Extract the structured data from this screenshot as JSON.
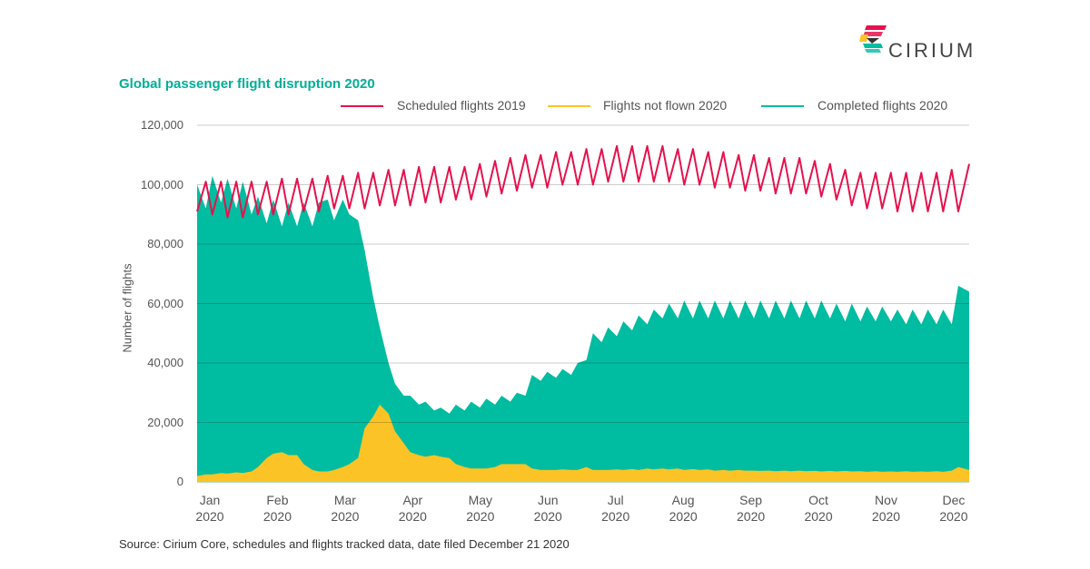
{
  "brand": {
    "logo_text": "CIRIUM"
  },
  "source": "Source: Cirium Core, schedules and flights tracked data, date filed December 21 2020",
  "chart_data": {
    "type": "area",
    "title": "Global passenger flight disruption 2020",
    "ylabel": "Number of flights",
    "xlabel": "",
    "ylim": [
      0,
      120000
    ],
    "yticks": [
      0,
      20000,
      40000,
      60000,
      80000,
      100000,
      120000
    ],
    "ytick_labels": [
      "0",
      "20,000",
      "40,000",
      "60,000",
      "80,000",
      "100,000",
      "120,000"
    ],
    "xtick_labels": [
      [
        "Jan",
        "2020"
      ],
      [
        "Feb",
        "2020"
      ],
      [
        "Mar",
        "2020"
      ],
      [
        "Apr",
        "2020"
      ],
      [
        "May",
        "2020"
      ],
      [
        "Jun",
        "2020"
      ],
      [
        "Jul",
        "2020"
      ],
      [
        "Aug",
        "2020"
      ],
      [
        "Sep",
        "2020"
      ],
      [
        "Oct",
        "2020"
      ],
      [
        "Nov",
        "2020"
      ],
      [
        "Dec",
        "2020"
      ]
    ],
    "grid": true,
    "legend_placement": "top-right",
    "x": [
      "2020-01-01",
      "2020-01-05",
      "2020-01-08",
      "2020-01-12",
      "2020-01-15",
      "2020-01-19",
      "2020-01-22",
      "2020-01-26",
      "2020-01-29",
      "2020-02-02",
      "2020-02-05",
      "2020-02-09",
      "2020-02-12",
      "2020-02-16",
      "2020-02-19",
      "2020-02-23",
      "2020-02-26",
      "2020-03-01",
      "2020-03-04",
      "2020-03-08",
      "2020-03-11",
      "2020-03-15",
      "2020-03-18",
      "2020-03-22",
      "2020-03-25",
      "2020-03-29",
      "2020-04-01",
      "2020-04-05",
      "2020-04-08",
      "2020-04-12",
      "2020-04-15",
      "2020-04-19",
      "2020-04-22",
      "2020-04-26",
      "2020-04-29",
      "2020-05-03",
      "2020-05-06",
      "2020-05-10",
      "2020-05-13",
      "2020-05-17",
      "2020-05-20",
      "2020-05-24",
      "2020-05-27",
      "2020-05-31",
      "2020-06-03",
      "2020-06-07",
      "2020-06-10",
      "2020-06-14",
      "2020-06-17",
      "2020-06-21",
      "2020-06-24",
      "2020-06-28",
      "2020-07-01",
      "2020-07-05",
      "2020-07-08",
      "2020-07-12",
      "2020-07-15",
      "2020-07-19",
      "2020-07-22",
      "2020-07-26",
      "2020-07-29",
      "2020-08-02",
      "2020-08-05",
      "2020-08-09",
      "2020-08-12",
      "2020-08-16",
      "2020-08-19",
      "2020-08-23",
      "2020-08-26",
      "2020-08-30",
      "2020-09-02",
      "2020-09-06",
      "2020-09-09",
      "2020-09-13",
      "2020-09-16",
      "2020-09-20",
      "2020-09-23",
      "2020-09-27",
      "2020-09-30",
      "2020-10-04",
      "2020-10-07",
      "2020-10-11",
      "2020-10-14",
      "2020-10-18",
      "2020-10-21",
      "2020-10-25",
      "2020-10-28",
      "2020-11-01",
      "2020-11-04",
      "2020-11-08",
      "2020-11-11",
      "2020-11-15",
      "2020-11-18",
      "2020-11-22",
      "2020-11-25",
      "2020-11-29",
      "2020-12-02",
      "2020-12-06",
      "2020-12-09",
      "2020-12-13",
      "2020-12-16",
      "2020-12-21"
    ],
    "series": [
      {
        "name": "Scheduled flights 2019",
        "kind": "line",
        "color": "#e5124d",
        "values": [
          91000,
          101000,
          90000,
          101000,
          89000,
          101000,
          89000,
          101000,
          90000,
          101000,
          90000,
          102000,
          90000,
          102000,
          91000,
          102000,
          91000,
          103000,
          92000,
          103000,
          92000,
          104000,
          92000,
          104000,
          93000,
          105000,
          93000,
          105000,
          93000,
          106000,
          94000,
          106000,
          94000,
          106000,
          95000,
          106000,
          95000,
          107000,
          96000,
          108000,
          97000,
          109000,
          98000,
          110000,
          99000,
          110000,
          99000,
          111000,
          100000,
          111000,
          100000,
          112000,
          100000,
          112000,
          101000,
          113000,
          101000,
          113000,
          101000,
          113000,
          101000,
          113000,
          101000,
          112000,
          100000,
          112000,
          100000,
          111000,
          99000,
          111000,
          99000,
          110000,
          98000,
          110000,
          98000,
          109000,
          97000,
          109000,
          97000,
          109000,
          97000,
          108000,
          96000,
          107000,
          95000,
          105000,
          93000,
          104000,
          92000,
          104000,
          92000,
          104000,
          91000,
          104000,
          91000,
          104000,
          91000,
          104000,
          91000,
          105000,
          91000,
          107000
        ]
      },
      {
        "name": "Flights not flown 2020",
        "kind": "area",
        "color": "#fcc326",
        "values": [
          2000,
          2500,
          2500,
          3000,
          2800,
          3200,
          3000,
          3500,
          5000,
          8000,
          9500,
          10000,
          9000,
          9000,
          6000,
          4000,
          3500,
          3500,
          4000,
          5000,
          6000,
          8000,
          18000,
          22000,
          26000,
          23000,
          17000,
          13000,
          10000,
          9000,
          8500,
          9000,
          8500,
          8000,
          6000,
          5000,
          4500,
          4500,
          4500,
          5000,
          6000,
          6000,
          6000,
          6000,
          4500,
          4000,
          4000,
          4000,
          4200,
          4000,
          4000,
          5000,
          4000,
          4000,
          4000,
          4200,
          4000,
          4300,
          4000,
          4500,
          4200,
          4500,
          4200,
          4500,
          4000,
          4300,
          4000,
          4200,
          3800,
          4000,
          3800,
          4000,
          3800,
          3800,
          3700,
          3800,
          3600,
          3800,
          3600,
          3800,
          3600,
          3700,
          3500,
          3700,
          3500,
          3700,
          3500,
          3600,
          3400,
          3600,
          3400,
          3500,
          3400,
          3600,
          3400,
          3500,
          3400,
          3600,
          3400,
          3800,
          5000,
          4000
        ]
      },
      {
        "name": "Completed flights 2020",
        "kind": "area",
        "color": "#00bca1",
        "values": [
          100000,
          92000,
          103000,
          94000,
          102000,
          92000,
          101000,
          90000,
          96000,
          87000,
          95000,
          86000,
          94000,
          86000,
          94000,
          86000,
          94000,
          95000,
          88000,
          95000,
          90000,
          88000,
          78000,
          62000,
          52000,
          40000,
          33000,
          29000,
          29000,
          26000,
          27000,
          24000,
          25000,
          23000,
          26000,
          24000,
          27000,
          25000,
          28000,
          26000,
          29000,
          27000,
          30000,
          29000,
          36000,
          34000,
          37000,
          35000,
          38000,
          36000,
          40000,
          41000,
          50000,
          47000,
          52000,
          49000,
          54000,
          51000,
          56000,
          53000,
          58000,
          55000,
          60000,
          55000,
          61000,
          55000,
          61000,
          55000,
          61000,
          55000,
          61000,
          55000,
          61000,
          55000,
          61000,
          55000,
          61000,
          55000,
          61000,
          55000,
          61000,
          55000,
          61000,
          55000,
          60000,
          54000,
          60000,
          54000,
          59000,
          54000,
          59000,
          54000,
          58000,
          53000,
          58000,
          53000,
          58000,
          53000,
          58000,
          53000,
          66000,
          64000
        ]
      }
    ]
  }
}
